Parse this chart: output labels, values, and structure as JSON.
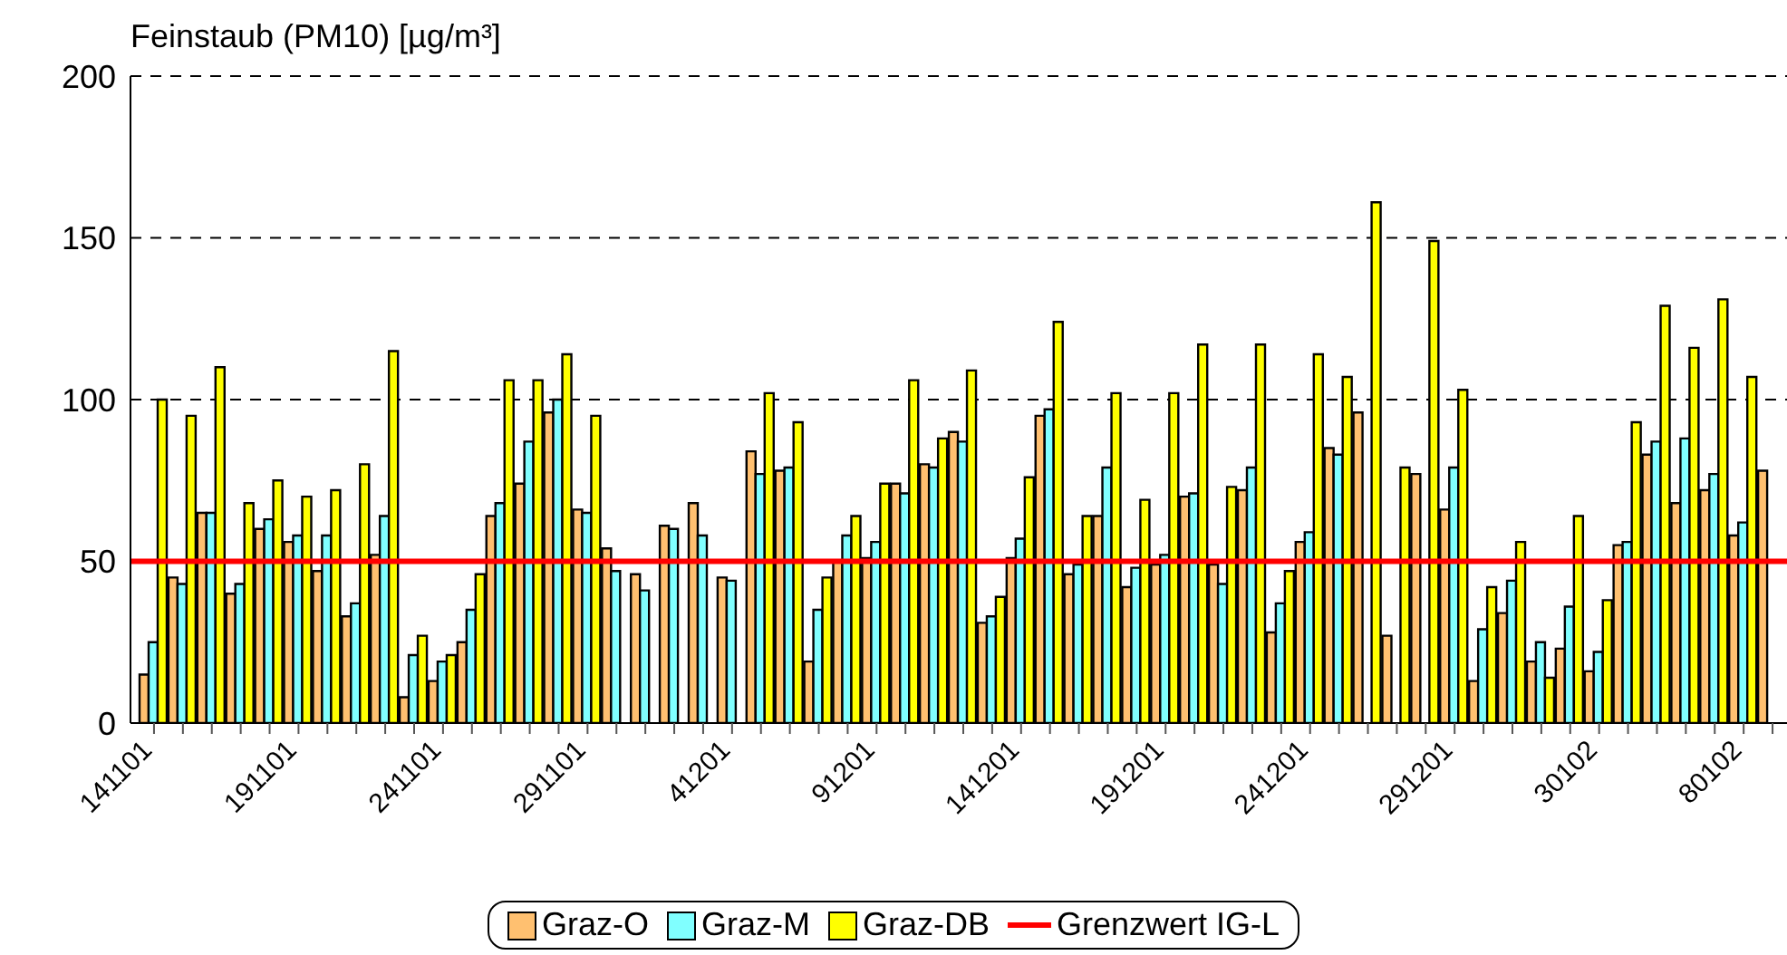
{
  "chart_data": {
    "type": "bar",
    "ylabel": "Feinstaub (PM10) [µg/m³]",
    "categories": [
      "141101",
      null,
      null,
      null,
      null,
      "191101",
      null,
      null,
      null,
      null,
      "241101",
      null,
      null,
      null,
      null,
      "291101",
      null,
      null,
      null,
      null,
      "41201",
      null,
      null,
      null,
      null,
      "91201",
      null,
      null,
      null,
      null,
      "141201",
      null,
      null,
      null,
      null,
      "191201",
      null,
      null,
      null,
      null,
      "241201",
      null,
      null,
      null,
      null,
      "291201",
      null,
      null,
      null,
      null,
      "30102",
      null,
      null,
      null,
      null,
      "80102",
      null
    ],
    "series": [
      {
        "name": "Graz-O",
        "color": "#ffc070",
        "values": [
          15,
          45,
          65,
          40,
          60,
          56,
          47,
          33,
          52,
          8,
          13,
          25,
          64,
          74,
          96,
          66,
          54,
          46,
          61,
          68,
          45,
          84,
          78,
          19,
          50,
          51,
          74,
          80,
          90,
          31,
          51,
          95,
          46,
          64,
          42,
          49,
          70,
          49,
          72,
          28,
          56,
          85,
          96,
          27,
          77,
          66,
          13,
          34,
          19,
          23,
          16,
          55,
          83,
          68,
          72,
          58,
          78
        ]
      },
      {
        "name": "Graz-M",
        "color": "#80ffff",
        "values": [
          25,
          43,
          65,
          43,
          63,
          58,
          58,
          37,
          64,
          21,
          19,
          35,
          68,
          87,
          100,
          65,
          47,
          41,
          60,
          58,
          44,
          77,
          79,
          35,
          58,
          56,
          71,
          79,
          87,
          33,
          57,
          97,
          49,
          79,
          48,
          52,
          71,
          43,
          79,
          37,
          59,
          83,
          null,
          null,
          null,
          79,
          29,
          44,
          25,
          36,
          22,
          56,
          87,
          88,
          77,
          62,
          null
        ]
      },
      {
        "name": "Graz-DB",
        "color": "#ffff00",
        "values": [
          100,
          95,
          110,
          68,
          75,
          70,
          72,
          80,
          115,
          27,
          21,
          46,
          106,
          106,
          114,
          95,
          null,
          null,
          null,
          null,
          null,
          102,
          93,
          45,
          64,
          74,
          106,
          88,
          109,
          39,
          76,
          124,
          64,
          102,
          69,
          102,
          117,
          73,
          117,
          47,
          114,
          107,
          161,
          79,
          149,
          103,
          42,
          56,
          14,
          64,
          38,
          93,
          129,
          116,
          131,
          107,
          null
        ]
      }
    ],
    "ylim": [
      0,
      200
    ],
    "yticks": [
      0,
      50,
      100,
      150,
      200
    ],
    "grid": "y",
    "legend": "bottom",
    "ref_lines": [
      {
        "axis": "y",
        "value": 50,
        "label": "Grenzwert IG-L",
        "color": "#ff0000"
      }
    ]
  }
}
